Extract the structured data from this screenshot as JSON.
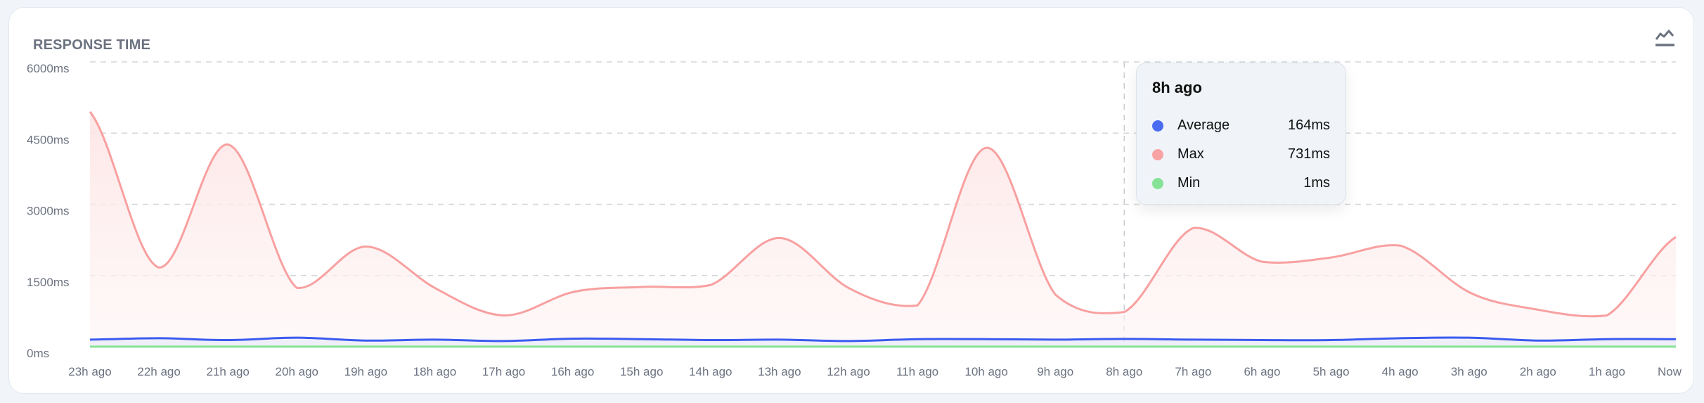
{
  "card": {
    "title": "RESPONSE TIME",
    "icon": "line-chart-icon"
  },
  "colors": {
    "average": "#3b5bef",
    "max": "#f8a0a0",
    "min": "#86e395",
    "grid": "#d4d6da"
  },
  "tooltip": {
    "title": "8h ago",
    "rows": [
      {
        "label": "Average",
        "value": "164ms",
        "color": "#4a6cf2"
      },
      {
        "label": "Max",
        "value": "731ms",
        "color": "#f8a3a3"
      },
      {
        "label": "Min",
        "value": "1ms",
        "color": "#86e395"
      }
    ]
  },
  "chart_data": {
    "type": "line",
    "title": "RESPONSE TIME",
    "xlabel": "",
    "ylabel": "",
    "ylim": [
      0,
      6000
    ],
    "y_ticks": [
      "0ms",
      "1500ms",
      "3000ms",
      "4500ms",
      "6000ms"
    ],
    "y_tick_values": [
      0,
      1500,
      3000,
      4500,
      6000
    ],
    "grid": true,
    "categories": [
      "23h ago",
      "22h ago",
      "21h ago",
      "20h ago",
      "19h ago",
      "18h ago",
      "17h ago",
      "16h ago",
      "15h ago",
      "14h ago",
      "13h ago",
      "12h ago",
      "11h ago",
      "10h ago",
      "9h ago",
      "8h ago",
      "7h ago",
      "6h ago",
      "5h ago",
      "4h ago",
      "3h ago",
      "2h ago",
      "1h ago",
      "Now"
    ],
    "series": [
      {
        "name": "Max",
        "values": [
          4950,
          1670,
          4260,
          1240,
          2110,
          1240,
          660,
          1150,
          1260,
          1300,
          2290,
          1240,
          870,
          4190,
          1100,
          731,
          2500,
          1790,
          1880,
          2130,
          1150,
          780,
          660,
          2310
        ]
      },
      {
        "name": "Average",
        "values": [
          150,
          180,
          140,
          190,
          130,
          150,
          120,
          170,
          160,
          140,
          150,
          120,
          160,
          160,
          150,
          164,
          150,
          140,
          140,
          180,
          190,
          130,
          160,
          160
        ]
      },
      {
        "name": "Min",
        "values": [
          1,
          1,
          1,
          1,
          1,
          1,
          1,
          1,
          1,
          1,
          1,
          1,
          1,
          1,
          1,
          1,
          1,
          1,
          1,
          1,
          1,
          1,
          1,
          1
        ]
      }
    ],
    "hover_index": 15
  }
}
